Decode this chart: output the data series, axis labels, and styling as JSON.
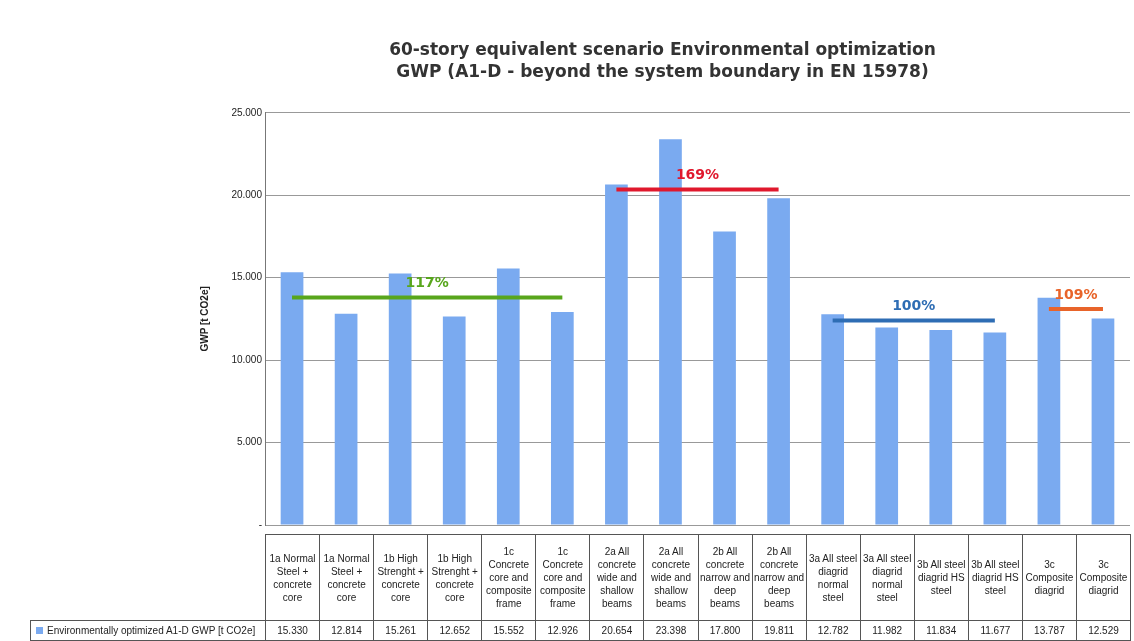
{
  "chart_data": {
    "type": "bar",
    "title": "60-story equivalent scenario Environmental optimization",
    "subtitle": "GWP (A1-D - beyond the system boundary in EN 15978)",
    "ylabel": "GWP [t CO2e]",
    "categories": [
      "1a Normal Steel + concrete core",
      "1a Normal Steel + concrete core",
      "1b High Strenght + concrete core",
      "1b High Strenght + concrete core",
      "1c Concrete core and composite frame",
      "1c Concrete core and composite frame",
      "2a All concrete wide and shallow beams",
      "2a All concrete wide and shallow beams",
      "2b All concrete narrow and deep beams",
      "2b All concrete narrow and deep beams",
      "3a All steel diagrid normal steel",
      "3a All steel diagrid normal steel",
      "3b All steel diagrid HS steel",
      "3b All steel diagrid HS steel",
      "3c Composite diagrid",
      "3c Composite diagrid"
    ],
    "series": [
      {
        "name": "Environmentally optimized A1-D GWP [t CO2e]",
        "color": "#7aaaf0",
        "values": [
          15330,
          12814,
          15261,
          12652,
          15552,
          12926,
          20654,
          23398,
          17800,
          19811,
          12782,
          11982,
          11834,
          11677,
          13787,
          12529
        ],
        "value_labels": [
          "15.330",
          "12.814",
          "15.261",
          "12.652",
          "15.552",
          "12.926",
          "20.654",
          "23.398",
          "17.800",
          "19.811",
          "12.782",
          "11.982",
          "11.834",
          "11.677",
          "13.787",
          "12.529"
        ]
      },
      {
        "type": "line",
        "name": "117%",
        "color": "#58a61c",
        "values": [
          13800,
          13800,
          13800,
          13800,
          13800,
          13800,
          null,
          null,
          null,
          null,
          null,
          null,
          null,
          null,
          null,
          null
        ]
      },
      {
        "type": "line",
        "name": "169%",
        "color": "#e0182d",
        "values": [
          null,
          null,
          null,
          null,
          null,
          null,
          20350,
          20350,
          20350,
          20350,
          null,
          null,
          null,
          null,
          null,
          null
        ]
      },
      {
        "type": "line",
        "name": "100%",
        "color": "#2e6db4",
        "values": [
          null,
          null,
          null,
          null,
          null,
          null,
          null,
          null,
          null,
          null,
          12400,
          12400,
          12400,
          12400,
          null,
          null
        ]
      },
      {
        "type": "line",
        "name": "109%",
        "color": "#e8642a",
        "values": [
          null,
          null,
          null,
          null,
          null,
          null,
          null,
          null,
          null,
          null,
          null,
          null,
          null,
          null,
          13100,
          13100
        ]
      }
    ],
    "ylim": [
      0,
      25000
    ],
    "yticks": [
      {
        "value": 0,
        "label": "-"
      },
      {
        "value": 5000,
        "label": "5.000"
      },
      {
        "value": 10000,
        "label": "10.000"
      },
      {
        "value": 15000,
        "label": "15.000"
      },
      {
        "value": 20000,
        "label": "20.000"
      },
      {
        "value": 25000,
        "label": "25.000"
      }
    ],
    "grid": "y",
    "legend": "bottom",
    "marker": "none"
  }
}
